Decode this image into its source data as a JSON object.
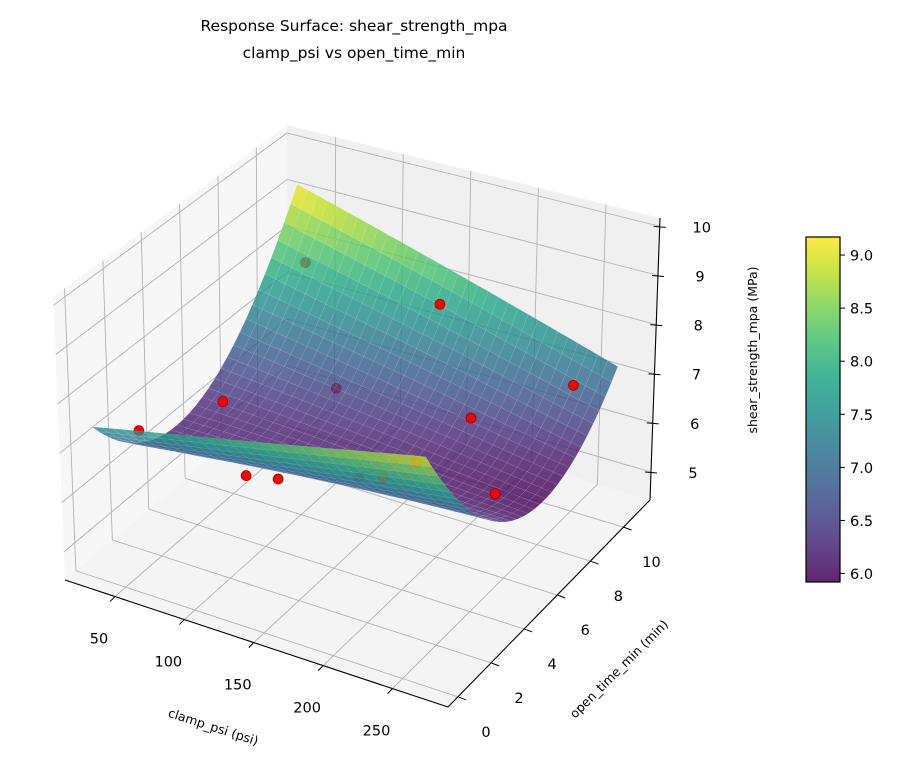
{
  "chart_data": {
    "type": "surface",
    "title": "Response Surface: shear_strength_mpa",
    "subtitle": "clamp_psi vs open_time_min",
    "xlabel": "clamp_psi (psi)",
    "ylabel": "open_time_min (min)",
    "zlabel": "shear_strength_mpa (MPa)",
    "xlim": [
      14,
      290
    ],
    "ylim": [
      -0.6,
      11.6
    ],
    "zlim": [
      4.43,
      10.17
    ],
    "xticks": [
      "50",
      "100",
      "150",
      "200",
      "250"
    ],
    "yticks": [
      "0",
      "2",
      "4",
      "6",
      "8",
      "10"
    ],
    "zticks": [
      "5",
      "6",
      "7",
      "8",
      "9",
      "10"
    ],
    "grid": true,
    "colormap": "viridis",
    "surface_alpha": 0.8,
    "surface": {
      "clamp_psi": [
        30,
        90,
        150,
        210,
        270
      ],
      "open_time_min": [
        0,
        2.75,
        5.5,
        8.25,
        11
      ],
      "shear_strength_mpa": [
        [
          7.5,
          6.35,
          6.25,
          7.2,
          9.2
        ],
        [
          7.88,
          6.5,
          6.19,
          6.92,
          8.7
        ],
        [
          8.25,
          6.66,
          6.12,
          6.64,
          8.2
        ],
        [
          8.63,
          6.82,
          6.06,
          6.35,
          7.7
        ],
        [
          9.0,
          6.97,
          6.0,
          6.07,
          7.2
        ]
      ]
    },
    "points": [
      {
        "clamp_psi": 50,
        "open_time_min": 1,
        "shear_strength_mpa": 7.3
      },
      {
        "clamp_psi": 50,
        "open_time_min": 5.5,
        "shear_strength_mpa": 6.5
      },
      {
        "clamp_psi": 50,
        "open_time_min": 10,
        "shear_strength_mpa": 8.0
      },
      {
        "clamp_psi": 150,
        "open_time_min": 1,
        "shear_strength_mpa": 7.2
      },
      {
        "clamp_psi": 150,
        "open_time_min": 5.5,
        "shear_strength_mpa": 5.8
      },
      {
        "clamp_psi": 150,
        "open_time_min": 10,
        "shear_strength_mpa": 7.9
      },
      {
        "clamp_psi": 250,
        "open_time_min": 1,
        "shear_strength_mpa": 8.4
      },
      {
        "clamp_psi": 250,
        "open_time_min": 5.5,
        "shear_strength_mpa": 6.3
      },
      {
        "clamp_psi": 250,
        "open_time_min": 10,
        "shear_strength_mpa": 7.0
      },
      {
        "clamp_psi": 100,
        "open_time_min": 3,
        "shear_strength_mpa": 6.2
      },
      {
        "clamp_psi": 200,
        "open_time_min": 3,
        "shear_strength_mpa": 7.0
      },
      {
        "clamp_psi": 100,
        "open_time_min": 8,
        "shear_strength_mpa": 6.4
      },
      {
        "clamp_psi": 200,
        "open_time_min": 8,
        "shear_strength_mpa": 6.6
      }
    ],
    "point_color": "#ff0000",
    "point_edge_color": "#8b0000",
    "colorbar": {
      "range": [
        5.92,
        9.17
      ],
      "ticks": [
        "6.0",
        "6.5",
        "7.0",
        "7.5",
        "8.0",
        "8.5",
        "9.0"
      ],
      "placement": "right"
    },
    "colors": {
      "viridis": [
        "#440154",
        "#482475",
        "#414487",
        "#355f8d",
        "#2a788e",
        "#21918c",
        "#22a884",
        "#44bf70",
        "#7ad151",
        "#bddf26",
        "#fde725"
      ],
      "pane_side": "#f0f0f0",
      "pane_floor": "#f4f4f4",
      "grid": "#b3b3b3"
    }
  }
}
